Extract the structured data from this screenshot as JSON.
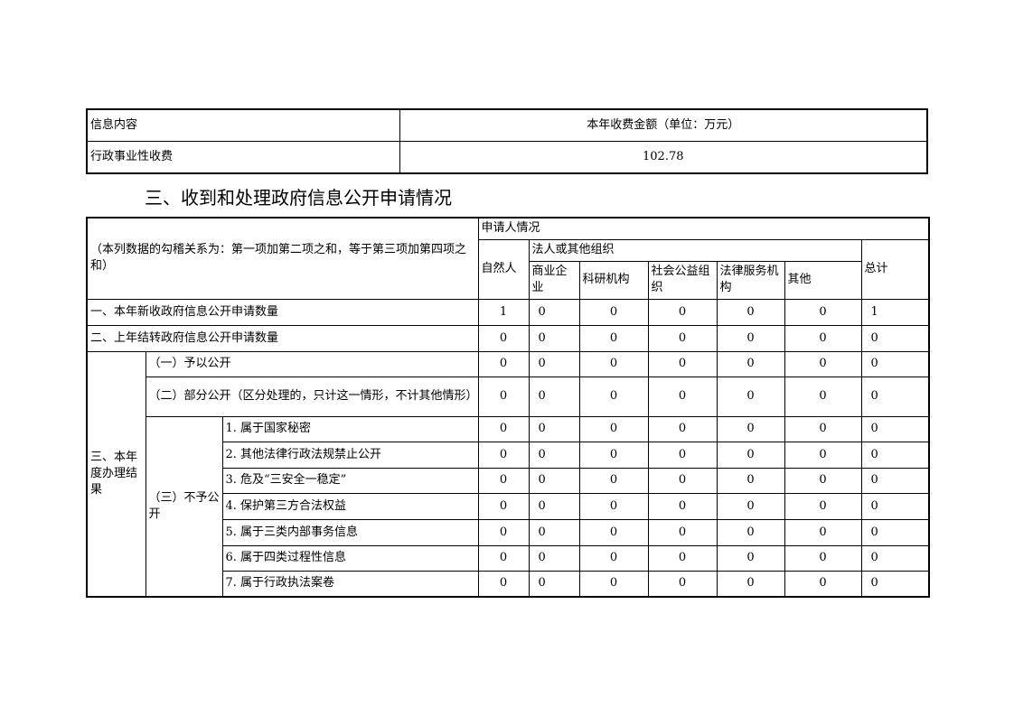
{
  "fee_table": {
    "header": [
      "信息内容",
      "本年收费金额（单位：万元）"
    ],
    "row": [
      "行政事业性收费",
      "102.78"
    ]
  },
  "section_title": "三、收到和处理政府信息公开申请情况",
  "main_table": {
    "note": "（本列数据的勾稽关系为：第一项加第二项之和，等于第三项加第四项之和）",
    "applicant": "申请人情况",
    "natural_person": "自然人",
    "legal_group": "法人或其他组织",
    "orgs": [
      "商业企业",
      "科研机构",
      "社会公益组织",
      "法律服务机构",
      "其他"
    ],
    "total": "总计",
    "group3_label": "三、本年度办理结果",
    "not_open_label": "（三）不予公开",
    "rows": [
      {
        "label": "一、本年新收政府信息公开申请数量",
        "values": [
          "1",
          "0",
          "0",
          "0",
          "0",
          "0",
          "1"
        ]
      },
      {
        "label": "二、上年结转政府信息公开申请数量",
        "values": [
          "0",
          "0",
          "0",
          "0",
          "0",
          "0",
          "0"
        ]
      },
      {
        "label": "（一）予以公开",
        "values": [
          "0",
          "0",
          "0",
          "0",
          "0",
          "0",
          "0"
        ]
      },
      {
        "label": "（二）部分公开（区分处理的，只计这一情形，不计其他情形）",
        "values": [
          "0",
          "0",
          "0",
          "0",
          "0",
          "0",
          "0"
        ]
      },
      {
        "label": "1. 属于国家秘密",
        "values": [
          "0",
          "0",
          "0",
          "0",
          "0",
          "0",
          "0"
        ]
      },
      {
        "label": "2. 其他法律行政法规禁止公开",
        "values": [
          "0",
          "0",
          "0",
          "0",
          "0",
          "0",
          "0"
        ]
      },
      {
        "label": "3. 危及“三安全一稳定”",
        "values": [
          "0",
          "0",
          "0",
          "0",
          "0",
          "0",
          "0"
        ]
      },
      {
        "label": "4. 保护第三方合法权益",
        "values": [
          "0",
          "0",
          "0",
          "0",
          "0",
          "0",
          "0"
        ]
      },
      {
        "label": "5. 属于三类内部事务信息",
        "values": [
          "0",
          "0",
          "0",
          "0",
          "0",
          "0",
          "0"
        ]
      },
      {
        "label": "6. 属于四类过程性信息",
        "values": [
          "0",
          "0",
          "0",
          "0",
          "0",
          "0",
          "0"
        ]
      },
      {
        "label": "7. 属于行政执法案卷",
        "values": [
          "0",
          "0",
          "0",
          "0",
          "0",
          "0",
          "0"
        ]
      }
    ]
  }
}
